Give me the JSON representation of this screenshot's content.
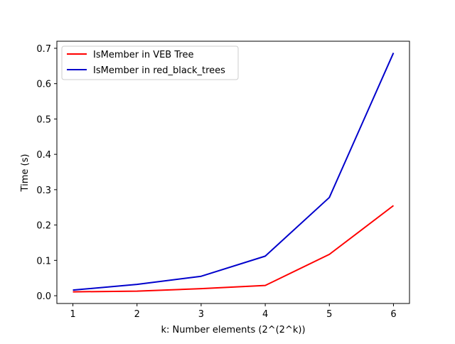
{
  "chart_data": {
    "type": "line",
    "title": "",
    "xlabel": "k: Number elements (2^(2^k))",
    "ylabel": "Time (s)",
    "x": [
      1,
      2,
      3,
      4,
      5,
      6
    ],
    "xticks": [
      "1",
      "2",
      "3",
      "4",
      "5",
      "6"
    ],
    "yticks": [
      "0.0",
      "0.1",
      "0.2",
      "0.3",
      "0.4",
      "0.5",
      "0.6",
      "0.7"
    ],
    "xlim": [
      0.75,
      6.25
    ],
    "ylim": [
      -0.022,
      0.72
    ],
    "grid": false,
    "legend_position": "upper-left",
    "series": [
      {
        "name": "IsMember in  VEB Tree",
        "color": "#ff0000",
        "values": [
          0.011,
          0.013,
          0.02,
          0.029,
          0.117,
          0.255
        ]
      },
      {
        "name": "IsMember in red_black_trees",
        "color": "#0000cc",
        "values": [
          0.016,
          0.032,
          0.055,
          0.112,
          0.278,
          0.687
        ]
      }
    ]
  }
}
